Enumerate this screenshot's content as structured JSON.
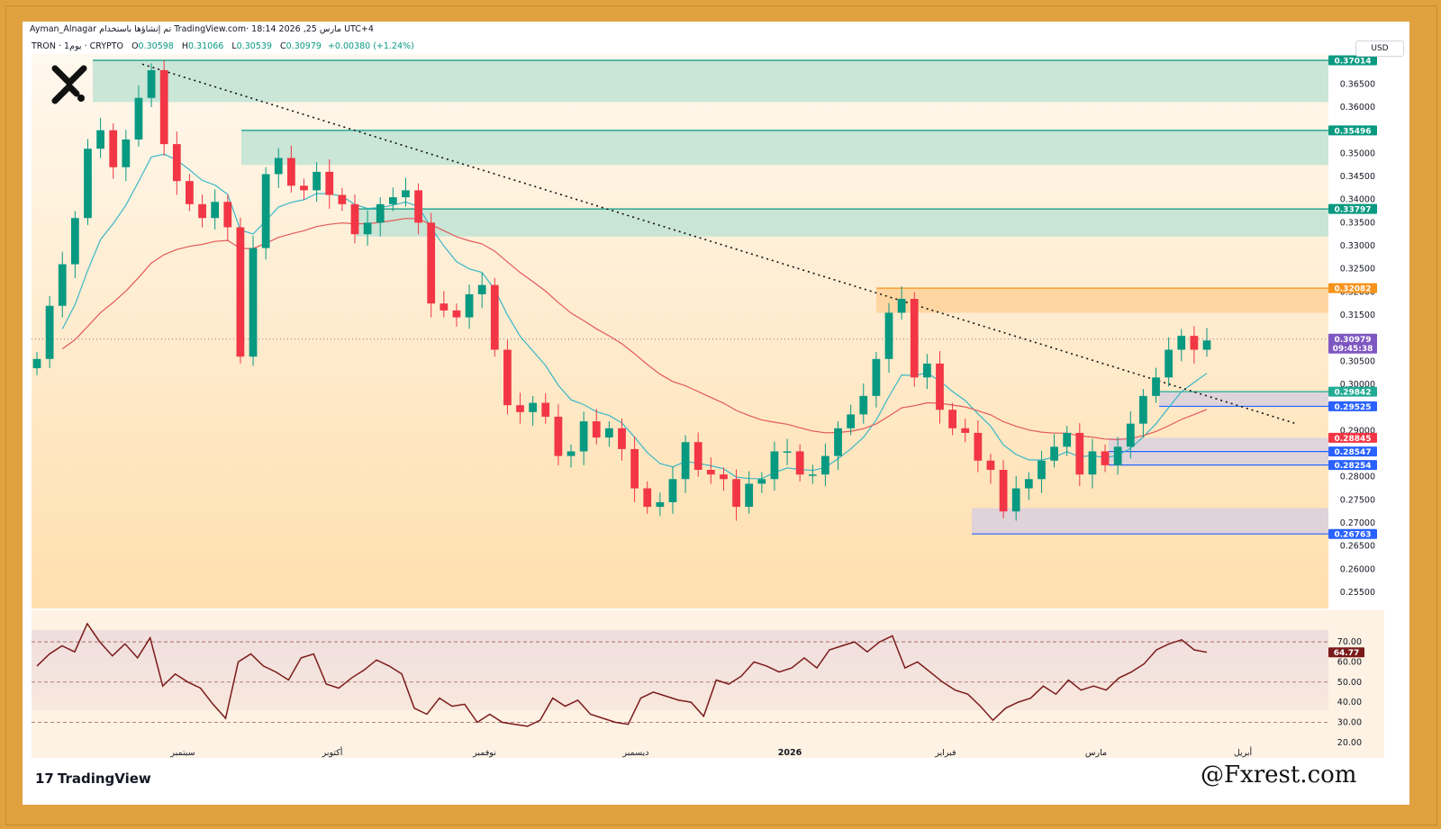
{
  "header": {
    "meta": "Ayman_Alnagar تم إنشاؤها باستخدام TradingView.com· 18:14 2026 ,25 مارس UTC+4",
    "symbol": "TRON · 1يوم · CRYPTO",
    "o_label": "O",
    "o_value": "0.30598",
    "h_label": "H",
    "h_value": "0.31066",
    "l_label": "L",
    "l_value": "0.30539",
    "c_label": "C",
    "c_value": "0.30979",
    "change": "+0.00380 (+1.24%)",
    "currency": "USD"
  },
  "footer": {
    "tradingview_logo": "TradingView",
    "watermark": "@Fxrest.com"
  },
  "colors": {
    "up": "#089981",
    "down": "#f23645",
    "ema_fast": "#3ab7c7",
    "ema_slow": "#e35a5a",
    "rsi": "#7b1a1a",
    "bg_gradient_top": "#fff4e6",
    "bg_gradient_bottom": "#ffdfae"
  },
  "chart_data": [
    {
      "type": "candlestick",
      "title": "TRON · 1يوم · CRYPTO",
      "y_ticks": [
        "0.36500",
        "0.36000",
        "0.35500",
        "0.35000",
        "0.34500",
        "0.34000",
        "0.33500",
        "0.33000",
        "0.32500",
        "0.32000",
        "0.31500",
        "0.30500",
        "0.30000",
        "0.29000",
        "0.28000",
        "0.27500",
        "0.27000",
        "0.26500",
        "0.26000",
        "0.25500"
      ],
      "ylim": [
        0.2515,
        0.3715
      ],
      "x_ticks": [
        "سبتمبر",
        "أكتوبر",
        "نوفمبر",
        "ديسمبر",
        "2026",
        "فبراير",
        "مارس",
        "أبريل"
      ],
      "price_levels": [
        {
          "label": "0.37014",
          "value": 0.37014,
          "color": "#089981"
        },
        {
          "label": "0.35496",
          "value": 0.35496,
          "color": "#089981"
        },
        {
          "label": "0.33797",
          "value": 0.33797,
          "color": "#089981"
        },
        {
          "label": "0.32082",
          "value": 0.32082,
          "color": "#f7931a"
        },
        {
          "label": "0.29842",
          "value": 0.29842,
          "color": "#22ab94"
        },
        {
          "label": "0.29525",
          "value": 0.29525,
          "color": "#2962ff"
        },
        {
          "label": "0.28845",
          "value": 0.28845,
          "color": "#f23645"
        },
        {
          "label": "0.28547",
          "value": 0.28547,
          "color": "#2962ff"
        },
        {
          "label": "0.28254",
          "value": 0.28254,
          "color": "#2962ff"
        },
        {
          "label": "0.26763",
          "value": 0.26763,
          "color": "#2962ff"
        }
      ],
      "current_price": {
        "label": "0.30979",
        "value": 0.30979,
        "countdown": "09:45:38",
        "color": "#7e57c2"
      },
      "zones": [
        {
          "kind": "supply",
          "top": 0.37014,
          "bottom": 0.3611,
          "color": "#bfe3d3"
        },
        {
          "kind": "supply",
          "top": 0.35496,
          "bottom": 0.3475,
          "color": "#bfe3d3"
        },
        {
          "kind": "supply",
          "top": 0.33797,
          "bottom": 0.332,
          "color": "#bfe3d3"
        },
        {
          "kind": "resistance",
          "top": 0.32082,
          "bottom": 0.3155,
          "color": "#ffd199"
        },
        {
          "kind": "demand",
          "top": 0.29842,
          "bottom": 0.29525,
          "color": "#d8d0dd"
        },
        {
          "kind": "demand",
          "top": 0.28845,
          "bottom": 0.28254,
          "color": "#d8d0dd"
        },
        {
          "kind": "demand",
          "top": 0.2732,
          "bottom": 0.26763,
          "color": "#d8d0dd"
        }
      ],
      "trendline": {
        "style": "dotted",
        "from": [
          0.3693,
          "late Aug"
        ],
        "to": [
          0.2915,
          "late Mar"
        ]
      },
      "price_path": [
        0.3055,
        0.317,
        0.326,
        0.336,
        0.351,
        0.355,
        0.347,
        0.353,
        0.362,
        0.368,
        0.352,
        0.344,
        0.339,
        0.336,
        0.3395,
        0.334,
        0.306,
        0.3295,
        0.3455,
        0.349,
        0.343,
        0.342,
        0.346,
        0.341,
        0.339,
        0.3325,
        0.335,
        0.339,
        0.3405,
        0.342,
        0.335,
        0.3175,
        0.316,
        0.3145,
        0.3195,
        0.3215,
        0.3075,
        0.2955,
        0.294,
        0.296,
        0.293,
        0.2845,
        0.2855,
        0.292,
        0.2885,
        0.2905,
        0.286,
        0.2775,
        0.2735,
        0.2745,
        0.2795,
        0.2875,
        0.2815,
        0.2805,
        0.2795,
        0.2735,
        0.2785,
        0.2795,
        0.2855,
        0.2855,
        0.2805,
        0.2805,
        0.2845,
        0.2905,
        0.2935,
        0.2975,
        0.3055,
        0.3155,
        0.3185,
        0.3015,
        0.3045,
        0.2945,
        0.2905,
        0.2895,
        0.2835,
        0.2815,
        0.2725,
        0.2775,
        0.2795,
        0.2835,
        0.2865,
        0.2895,
        0.2805,
        0.2855,
        0.2825,
        0.2865,
        0.2915,
        0.2975,
        0.3015,
        0.3075,
        0.3105,
        0.3075,
        0.3095
      ],
      "rsi": {
        "levels": [
          "70.00",
          "60.00",
          "50.00",
          "40.00",
          "30.00",
          "20.00"
        ],
        "current_label": "64.77",
        "current": 64.77,
        "ylim": [
          15,
          83
        ],
        "values": [
          58,
          64,
          68,
          65,
          79,
          70,
          63,
          69,
          62,
          72,
          48,
          54,
          50,
          47,
          39,
          32,
          60,
          64,
          58,
          55,
          51,
          62,
          64,
          49,
          47,
          52,
          56,
          61,
          58,
          54,
          37,
          34,
          42,
          38,
          39,
          30,
          34,
          30,
          29,
          28,
          31,
          42,
          38,
          41,
          34,
          32,
          30,
          29,
          42,
          45,
          43,
          41,
          40,
          33,
          51,
          49,
          53,
          60,
          58,
          55,
          57,
          62,
          57,
          66,
          68,
          70,
          65,
          70,
          73,
          57,
          60,
          55,
          50,
          46,
          44,
          38,
          31,
          37,
          40,
          42,
          48,
          44,
          51,
          46,
          48,
          46,
          52,
          55,
          59,
          66,
          69,
          71,
          66,
          64.77
        ]
      }
    }
  ]
}
